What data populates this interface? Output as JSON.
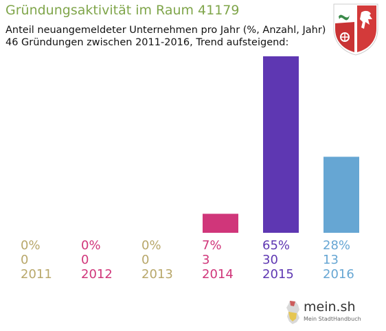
{
  "title": "Gründungsaktivität im Raum 41179",
  "subtitle_line1": "Anteil neuangemeldeter Unternehmen pro Jahr (%, Anzahl, Jahr)",
  "subtitle_line2": "46 Gründungen zwischen 2011-2016, Trend aufsteigend:",
  "colors": {
    "title": "#7fa54a",
    "subtitle": "#111111"
  },
  "chart_data": {
    "type": "bar",
    "categories": [
      "2011",
      "2012",
      "2013",
      "2014",
      "2015",
      "2016"
    ],
    "values": [
      0,
      0,
      0,
      7,
      65,
      28
    ],
    "counts": [
      0,
      0,
      0,
      3,
      30,
      13
    ],
    "percent_labels": [
      "0%",
      "0%",
      "0%",
      "7%",
      "65%",
      "28%"
    ],
    "count_labels": [
      "0",
      "0",
      "0",
      "3",
      "30",
      "13"
    ],
    "colors": [
      "#b8a76a",
      "#d0367a",
      "#b8a76a",
      "#d0367a",
      "#5e37b2",
      "#66a6d3"
    ],
    "ylim": [
      0,
      65
    ],
    "grid": false,
    "legend": "none"
  },
  "logo": {
    "name": "mein.sh",
    "tagline": "Mein StadtHandbuch"
  },
  "crest": {
    "icon": "nrw-crest-icon"
  }
}
